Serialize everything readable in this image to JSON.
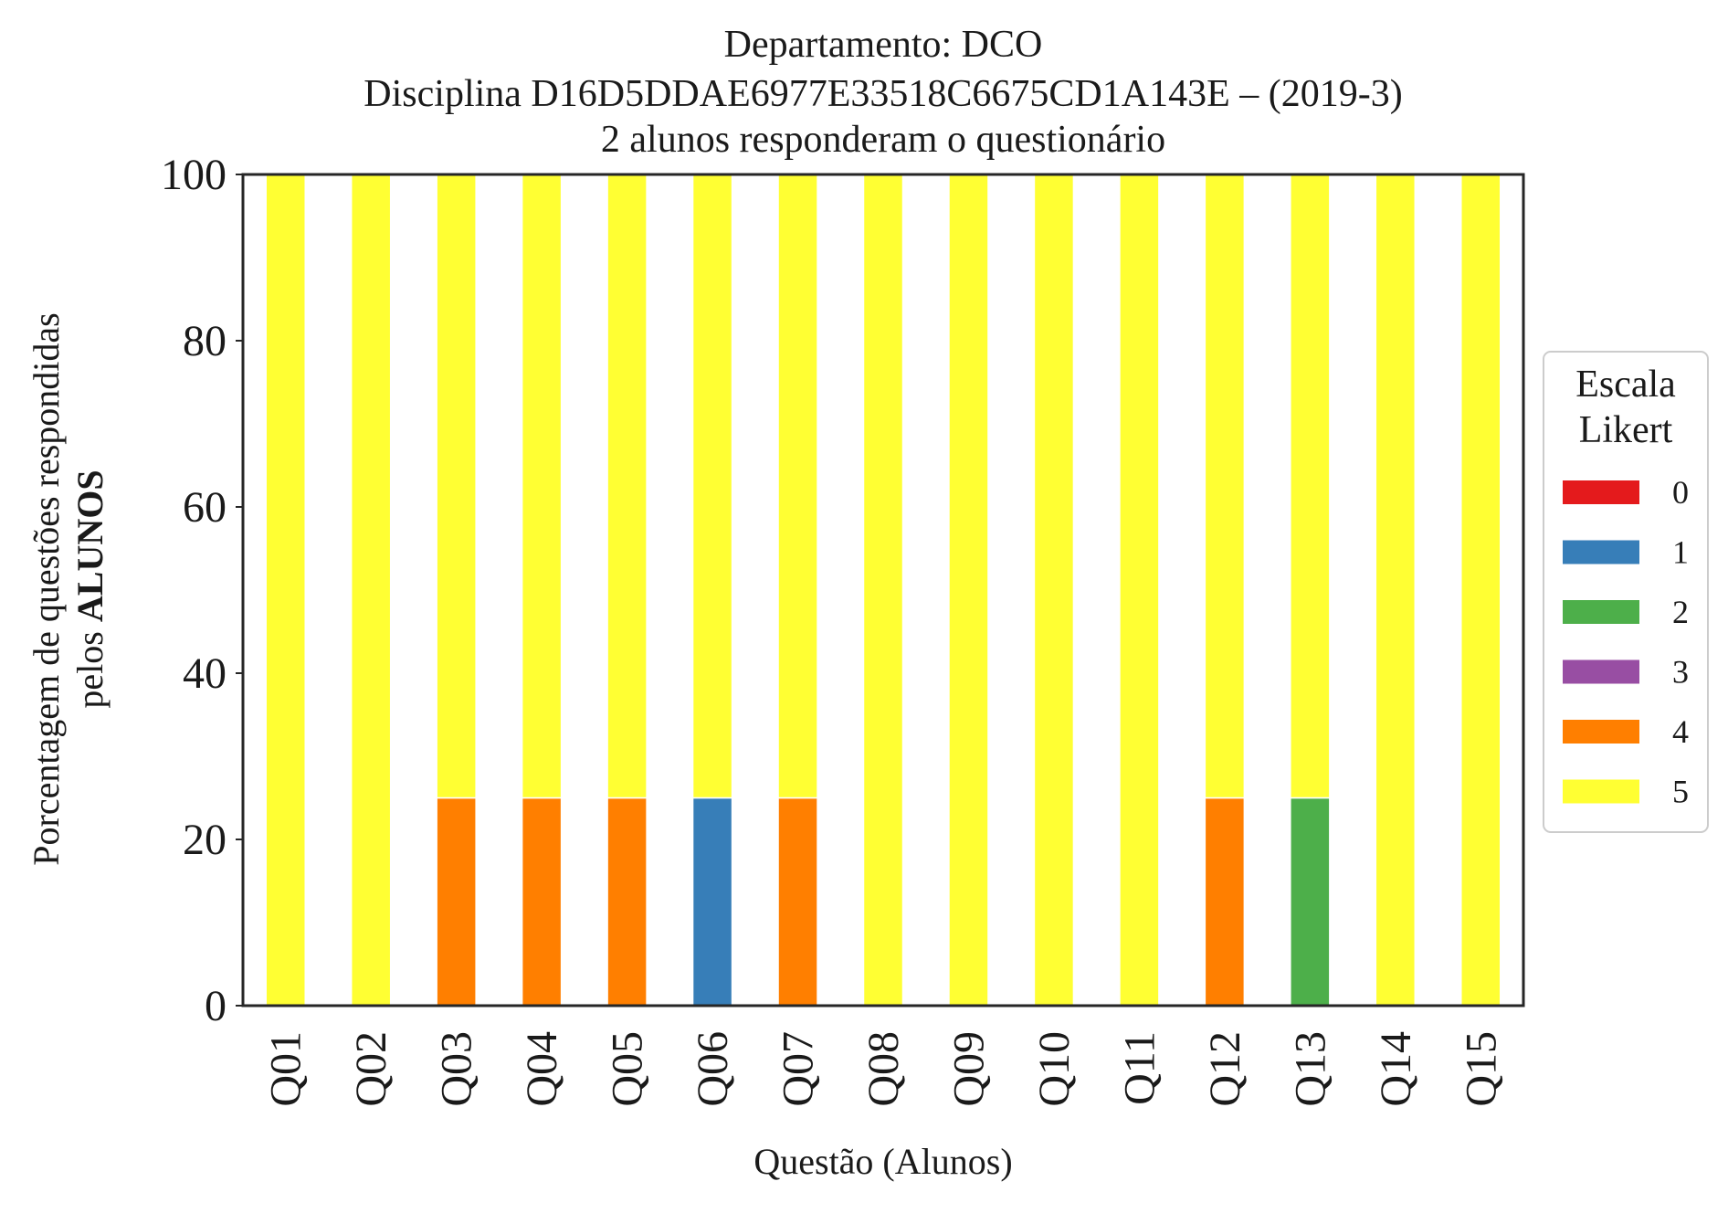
{
  "chart_data": {
    "type": "bar",
    "stacked": true,
    "title_lines": [
      "Departamento: DCO",
      "Disciplina D16D5DDAE6977E33518C6675CD1A143E – (2019-3)",
      "2 alunos responderam o questionário"
    ],
    "xlabel": "Questão (Alunos)",
    "ylabel_line1": "Porcentagem de questões respondidas",
    "ylabel_line2_prefix": "pelos ",
    "ylabel_line2_bold": "ALUNOS",
    "ylim": [
      0,
      100
    ],
    "yticks": [
      "0",
      "20",
      "40",
      "60",
      "80",
      "100"
    ],
    "categories": [
      "Q01",
      "Q02",
      "Q03",
      "Q04",
      "Q05",
      "Q06",
      "Q07",
      "Q08",
      "Q09",
      "Q10",
      "Q11",
      "Q12",
      "Q13",
      "Q14",
      "Q15"
    ],
    "series": [
      {
        "name": "0",
        "color": "#e41a1c",
        "values": [
          0,
          0,
          0,
          0,
          0,
          0,
          0,
          0,
          0,
          0,
          0,
          0,
          0,
          0,
          0
        ]
      },
      {
        "name": "1",
        "color": "#377eb8",
        "values": [
          0,
          0,
          0,
          0,
          0,
          25,
          0,
          0,
          0,
          0,
          0,
          0,
          0,
          0,
          0
        ]
      },
      {
        "name": "2",
        "color": "#4daf4a",
        "values": [
          0,
          0,
          0,
          0,
          0,
          0,
          0,
          0,
          0,
          0,
          0,
          0,
          25,
          0,
          0
        ]
      },
      {
        "name": "3",
        "color": "#984ea3",
        "values": [
          0,
          0,
          0,
          0,
          0,
          0,
          0,
          0,
          0,
          0,
          0,
          0,
          0,
          0,
          0
        ]
      },
      {
        "name": "4",
        "color": "#ff7f00",
        "values": [
          0,
          0,
          25,
          25,
          25,
          0,
          25,
          0,
          0,
          0,
          0,
          25,
          0,
          0,
          0
        ]
      },
      {
        "name": "5",
        "color": "#ffff33",
        "values": [
          100,
          100,
          75,
          75,
          75,
          75,
          75,
          100,
          100,
          100,
          100,
          75,
          75,
          100,
          100
        ]
      }
    ],
    "legend": {
      "title_lines": [
        "Escala",
        "Likert"
      ],
      "placement": "right"
    },
    "grid": false
  }
}
